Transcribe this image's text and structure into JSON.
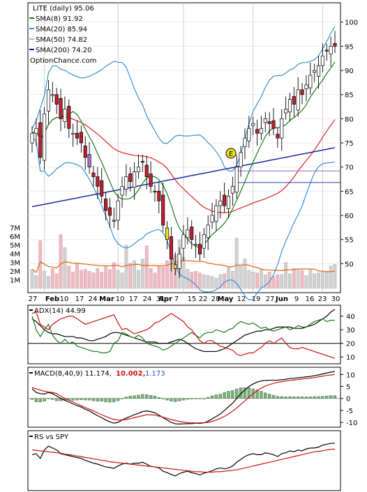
{
  "colors": {
    "sma8": "#1a7a1a",
    "sma20": "#3a8fd0",
    "sma50": "#e02020",
    "sma200": "#0a1aa0",
    "bollinger": "#3a8fd0",
    "volume_bar": "#f2b7c0",
    "volume_bar_down": "#d0d0d0",
    "volume_avg": "#e07020",
    "adx": "#000000",
    "plus_di": "#1a7a1a",
    "minus_di": "#d01010",
    "macd": "#000000",
    "signal": "#d01010",
    "hist": "#7ab07a",
    "rs": "#000000",
    "rs_avg": "#d01010",
    "up_candle": "#ffffff",
    "down_candle": "#c02030",
    "yellow_candle": "#f0e020",
    "purple_candle": "#b070d0"
  },
  "chart_data": [
    {
      "type": "candlestick",
      "title": "LITE (daily) 95.06",
      "watermark": "OptionChance.com",
      "legend": [
        {
          "label": "SMA(8) 91.92",
          "color": "#1a7a1a"
        },
        {
          "label": "SMA(20) 85.94",
          "color": "#3a8fd0"
        },
        {
          "label": "SMA(50) 74.82",
          "color": "#7ac0f0"
        },
        {
          "label": "SMA(200) 74.20",
          "color": "#0a1aa0"
        }
      ],
      "y_ticks": [
        50,
        55,
        60,
        65,
        70,
        75,
        80,
        85,
        90,
        95,
        100
      ],
      "ylim": [
        44,
        104
      ],
      "x_ticks": [
        "27",
        "Feb",
        "10",
        "17",
        "24",
        "Mar",
        "10",
        "17",
        "24",
        "31",
        "Apr",
        "7",
        "15",
        "22",
        "28",
        "May",
        "12",
        "19",
        "27",
        "Jun",
        "9",
        "16",
        "23",
        "30"
      ],
      "earnings_marker": "E",
      "horizontal_lines": [
        69.2,
        66.8
      ],
      "closes": [
        77,
        78,
        72,
        81,
        86,
        85,
        83,
        80,
        82,
        78,
        77,
        76,
        75,
        72,
        70,
        68,
        66,
        64,
        61,
        60,
        59,
        63,
        66,
        68,
        67,
        69,
        70,
        71,
        68,
        66,
        65,
        63,
        58,
        55,
        51,
        49,
        52,
        56,
        57,
        55,
        54,
        52,
        56,
        58,
        60,
        62,
        63,
        62,
        64,
        66,
        70,
        73,
        76,
        78,
        79,
        77,
        78,
        80,
        79,
        78,
        76,
        80,
        82,
        84,
        83,
        86,
        85,
        87,
        89,
        90,
        91,
        93,
        94,
        95,
        95
      ],
      "volume_y_ticks": [
        "7M",
        "6M",
        "5M",
        "4M",
        "3M",
        "2M",
        "1M"
      ],
      "volume": [
        2.2,
        1.5,
        5.5,
        2.0,
        1.4,
        2.3,
        1.7,
        6.2,
        4.7,
        2.6,
        1.9,
        2.9,
        2.1,
        2.2,
        2.0,
        1.8,
        2.3,
        1.9,
        2.6,
        2.2,
        3.0,
        2.1,
        1.8,
        5.0,
        2.9,
        3.2,
        2.1,
        3.4,
        4.9,
        2.3,
        1.8,
        2.6,
        2.5,
        3.2,
        5.3,
        3.9,
        5.6,
        3.6,
        2.2,
        1.9,
        2.0,
        1.8,
        1.6,
        1.5,
        1.4,
        1.2,
        1.6,
        1.7,
        2.4,
        2.0,
        5.8,
        2.6,
        3.4,
        2.1,
        1.9,
        1.8,
        2.2,
        1.6,
        1.9,
        1.4,
        1.6,
        1.6,
        3.0,
        1.7,
        2.3,
        2.1,
        2.1,
        1.5,
        2.2,
        1.7,
        1.8,
        1.9,
        2.0,
        2.6,
        2.8
      ]
    },
    {
      "type": "line",
      "title": "ADX(14) 44.99",
      "y_ticks": [
        10,
        20,
        30,
        40
      ],
      "ylim": [
        5,
        48
      ],
      "hlines": [
        20
      ],
      "series": [
        {
          "name": "ADX(14)",
          "values": [
            38,
            36,
            33,
            30,
            28,
            27,
            27,
            26,
            25,
            25,
            25,
            24,
            24,
            23,
            22,
            22,
            23,
            24,
            25,
            27,
            28,
            28,
            27,
            26,
            25,
            24,
            23,
            22,
            21,
            21,
            21,
            20,
            20,
            20,
            21,
            22,
            23,
            22,
            20,
            18,
            16,
            15,
            14,
            14,
            14,
            14,
            15,
            16,
            18,
            20,
            22,
            24,
            26,
            27,
            28,
            29,
            29,
            30,
            30,
            31,
            32,
            32,
            32,
            32,
            31,
            31,
            31,
            32,
            33,
            34,
            36,
            38,
            40,
            43,
            45
          ]
        },
        {
          "name": "+DI",
          "values": [
            40,
            30,
            25,
            30,
            34,
            26,
            22,
            20,
            23,
            20,
            21,
            18,
            17,
            16,
            15,
            14,
            14,
            13,
            13,
            14,
            20,
            22,
            28,
            27,
            25,
            24,
            26,
            24,
            20,
            19,
            18,
            17,
            15,
            16,
            18,
            20,
            22,
            24,
            26,
            28,
            26,
            24,
            27,
            28,
            28,
            30,
            29,
            28,
            30,
            31,
            34,
            36,
            35,
            34,
            35,
            33,
            31,
            32,
            30,
            29,
            30,
            31,
            32,
            30,
            31,
            33,
            32,
            32,
            34,
            36,
            37,
            38,
            36,
            37,
            37
          ]
        },
        {
          "name": "-DI",
          "values": [
            42,
            43,
            34,
            32,
            30,
            34,
            36,
            38,
            39,
            40,
            40,
            38,
            36,
            34,
            35,
            36,
            37,
            38,
            39,
            40,
            41,
            35,
            30,
            31,
            29,
            27,
            28,
            29,
            30,
            32,
            35,
            36,
            38,
            40,
            42,
            40,
            38,
            36,
            32,
            30,
            26,
            22,
            20,
            22,
            22,
            20,
            18,
            17,
            16,
            15,
            12,
            11,
            12,
            13,
            13,
            15,
            17,
            20,
            22,
            20,
            22,
            24,
            20,
            17,
            16,
            16,
            17,
            16,
            15,
            14,
            13,
            12,
            11,
            10,
            9
          ]
        }
      ]
    },
    {
      "type": "line",
      "title": "MACD(8,40,9) 11.174, 10.002, 1.173",
      "label_parts": [
        "MACD(8,40,9) 11.174,",
        "10.002,",
        "1.173"
      ],
      "y_ticks": [
        -10,
        -5,
        0,
        5,
        10
      ],
      "ylim": [
        -12,
        13
      ],
      "series": [
        {
          "name": "MACD",
          "values": [
            4.0,
            2.5,
            2.0,
            1.8,
            2.5,
            2.0,
            1.0,
            0.0,
            -0.8,
            -1.5,
            -2.3,
            -3.0,
            -3.6,
            -4.5,
            -5.2,
            -6.2,
            -7.2,
            -8.0,
            -9.0,
            -9.8,
            -10.3,
            -10.0,
            -9.0,
            -8.2,
            -7.5,
            -6.8,
            -6.2,
            -5.5,
            -5.2,
            -5.5,
            -6.0,
            -7.0,
            -8.0,
            -9.0,
            -10.0,
            -10.6,
            -10.7,
            -10.6,
            -10.5,
            -10.5,
            -10.3,
            -10.4,
            -10.2,
            -9.5,
            -8.5,
            -7.5,
            -6.5,
            -5.0,
            -3.5,
            -2.0,
            0.0,
            2.0,
            3.5,
            5.0,
            6.0,
            6.8,
            7.3,
            7.5,
            7.6,
            7.6,
            7.6,
            7.8,
            8.0,
            8.3,
            8.4,
            8.6,
            8.8,
            9.0,
            9.2,
            9.5,
            9.8,
            10.2,
            10.6,
            11.0,
            11.2
          ]
        },
        {
          "name": "Signal",
          "values": [
            4.5,
            4.0,
            3.5,
            3.0,
            2.7,
            2.5,
            2.0,
            1.0,
            0.0,
            -0.8,
            -1.5,
            -2.3,
            -3.0,
            -3.8,
            -4.5,
            -5.2,
            -6.0,
            -6.8,
            -7.5,
            -8.2,
            -8.8,
            -9.0,
            -9.0,
            -8.8,
            -8.5,
            -8.0,
            -7.6,
            -7.2,
            -6.8,
            -6.8,
            -7.0,
            -7.4,
            -7.8,
            -8.3,
            -8.8,
            -9.2,
            -9.6,
            -9.9,
            -10.1,
            -10.2,
            -10.2,
            -10.2,
            -10.1,
            -10.0,
            -9.6,
            -9.0,
            -8.3,
            -7.5,
            -6.5,
            -5.3,
            -4.0,
            -2.5,
            -1.0,
            0.5,
            2.0,
            3.2,
            4.3,
            5.2,
            5.8,
            6.3,
            6.7,
            7.0,
            7.3,
            7.5,
            7.7,
            7.9,
            8.1,
            8.3,
            8.5,
            8.7,
            9.0,
            9.3,
            9.6,
            9.8,
            10.0
          ]
        }
      ],
      "histogram": [
        -0.5,
        -1.5,
        -1.5,
        -1.2,
        -0.2,
        -0.5,
        -1.0,
        -1.0,
        -0.8,
        -0.7,
        -0.8,
        -0.7,
        -0.6,
        -0.7,
        -0.7,
        -1.0,
        -1.2,
        -1.2,
        -1.5,
        -1.6,
        -1.5,
        -1.0,
        0.0,
        0.6,
        1.0,
        1.2,
        1.4,
        1.7,
        1.6,
        1.3,
        1.0,
        0.4,
        -0.2,
        -0.7,
        -1.2,
        -1.4,
        -1.1,
        -0.7,
        -0.4,
        -0.3,
        -0.1,
        -0.2,
        -0.1,
        0.5,
        1.1,
        1.5,
        1.8,
        2.5,
        3.0,
        3.3,
        4.0,
        4.5,
        4.5,
        4.5,
        4.0,
        3.6,
        3.0,
        2.3,
        1.8,
        1.3,
        0.9,
        0.8,
        0.7,
        0.8,
        0.7,
        0.7,
        0.7,
        0.7,
        0.7,
        0.8,
        0.8,
        0.9,
        1.0,
        1.2,
        1.2
      ]
    },
    {
      "type": "line",
      "title": "RS vs SPY",
      "ylim": [
        0,
        100
      ],
      "series": [
        {
          "name": "RS vs SPY",
          "values": [
            70,
            72,
            62,
            80,
            88,
            84,
            80,
            72,
            70,
            68,
            66,
            64,
            62,
            58,
            55,
            52,
            50,
            47,
            44,
            43,
            41,
            46,
            50,
            52,
            50,
            52,
            52,
            54,
            50,
            45,
            44,
            42,
            35,
            32,
            28,
            25,
            30,
            33,
            35,
            32,
            30,
            27,
            31,
            33,
            36,
            40,
            42,
            40,
            42,
            46,
            54,
            60,
            66,
            70,
            72,
            70,
            70,
            74,
            72,
            70,
            66,
            72,
            74,
            78,
            76,
            80,
            78,
            82,
            84,
            84,
            86,
            90,
            92,
            94,
            94
          ]
        },
        {
          "name": "RS avg",
          "values": [
            80,
            79,
            78,
            77,
            76,
            75,
            74,
            73,
            71,
            70,
            69,
            67,
            66,
            64,
            63,
            61,
            60,
            58,
            57,
            55,
            54,
            53,
            52,
            51,
            50,
            49,
            48,
            47,
            46,
            45,
            44,
            43,
            42,
            41,
            40,
            39,
            38,
            37,
            36,
            35,
            34,
            34,
            33,
            33,
            33,
            34,
            34,
            35,
            36,
            37,
            38,
            40,
            42,
            44,
            46,
            48,
            50,
            52,
            54,
            56,
            58,
            60,
            62,
            64,
            66,
            68,
            70,
            72,
            74,
            76,
            77,
            78,
            80,
            81,
            82
          ]
        }
      ]
    }
  ]
}
